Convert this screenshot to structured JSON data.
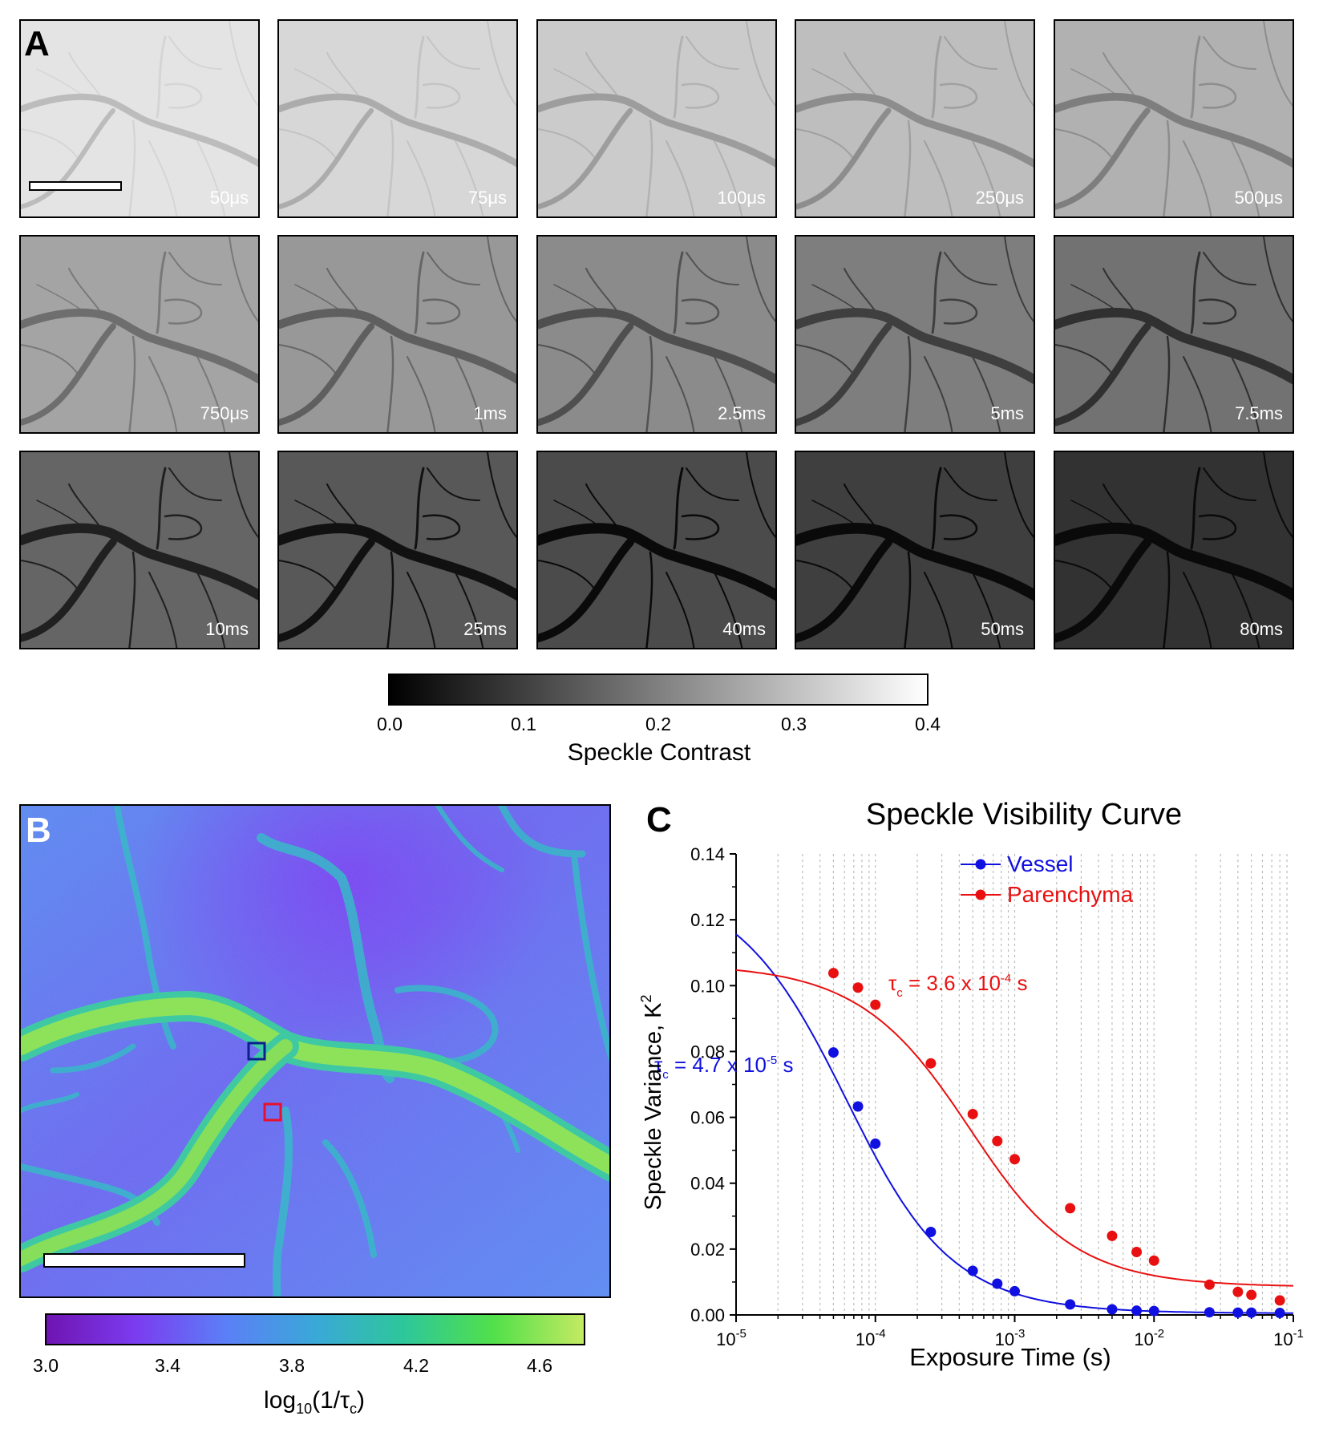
{
  "panelA": {
    "letter": "A",
    "exposures": [
      "50μs",
      "75μs",
      "100μs",
      "250μs",
      "500μs",
      "750μs",
      "1ms",
      "2.5ms",
      "5ms",
      "7.5ms",
      "10ms",
      "25ms",
      "40ms",
      "50ms",
      "80ms"
    ],
    "colorbar": {
      "ticks": [
        "0.0",
        "0.1",
        "0.2",
        "0.3",
        "0.4"
      ],
      "title": "Speckle Contrast",
      "gradient": [
        "#000000",
        "#ffffff"
      ]
    }
  },
  "panelB": {
    "letter": "B",
    "roi_colors": {
      "parenchyma": "#e8102a",
      "vessel": "#0b1f8f"
    },
    "colorbar": {
      "ticks": [
        "3.0",
        "3.4",
        "3.8",
        "4.2",
        "4.6"
      ],
      "title_base": "log",
      "title_sub": "10",
      "title_mid": "(1/τ",
      "title_sub2": "c",
      "title_end": ")",
      "gradient": [
        "#6f14b2",
        "#7b3cf0",
        "#5b7ff7",
        "#3aa8d8",
        "#2ec79a",
        "#52e04a",
        "#c4ea62"
      ]
    }
  },
  "chart_data": {
    "type": "scatter",
    "title": "Speckle Visibility Curve",
    "panel_letter": "C",
    "xlabel": "Exposure Time (s)",
    "ylabel_base": "Speckle Variance, K",
    "ylabel_sup": "2",
    "x_scale": "log",
    "xlim": [
      1e-05,
      0.1
    ],
    "ylim": [
      0,
      0.14
    ],
    "y_ticks": [
      "0.00",
      "0.02",
      "0.04",
      "0.06",
      "0.08",
      "0.10",
      "0.12",
      "0.14"
    ],
    "x_ticks": [
      {
        "value": 1e-05,
        "base": "10",
        "exp": "-5"
      },
      {
        "value": 0.0001,
        "base": "10",
        "exp": "-4"
      },
      {
        "value": 0.001,
        "base": "10",
        "exp": "-3"
      },
      {
        "value": 0.01,
        "base": "10",
        "exp": "-2"
      },
      {
        "value": 0.1,
        "base": "10",
        "exp": "-1"
      }
    ],
    "grid": "vertical-dotted",
    "legend_position": "top-right",
    "series": [
      {
        "name": "Vessel",
        "color": "#1010e0",
        "x": [
          5e-05,
          7.5e-05,
          0.0001,
          0.00025,
          0.0005,
          0.00075,
          0.001,
          0.0025,
          0.005,
          0.0075,
          0.01,
          0.025,
          0.04,
          0.05,
          0.08
        ],
        "y": [
          0.0797,
          0.0633,
          0.052,
          0.0252,
          0.0134,
          0.0095,
          0.0072,
          0.0032,
          0.0017,
          0.0013,
          0.0012,
          0.0008,
          0.0007,
          0.0007,
          0.0006
        ],
        "fit": {
          "tau": 4.7e-05,
          "beta": 0.132,
          "offset": 0.0005
        },
        "annotation": {
          "base": "τ",
          "sub": "c",
          "text": " = 4.7 x 10",
          "sup": "-5",
          "unit": " s"
        }
      },
      {
        "name": "Parenchyma",
        "color": "#e81010",
        "x": [
          5e-05,
          7.5e-05,
          0.0001,
          0.00025,
          0.0005,
          0.00075,
          0.001,
          0.0025,
          0.005,
          0.0075,
          0.01,
          0.025,
          0.04,
          0.05,
          0.08
        ],
        "y": [
          0.1038,
          0.0994,
          0.0942,
          0.0764,
          0.061,
          0.0528,
          0.0473,
          0.0324,
          0.024,
          0.0191,
          0.0165,
          0.0092,
          0.007,
          0.0061,
          0.0044
        ],
        "fit": {
          "tau": 0.00036,
          "beta": 0.098,
          "offset": 0.0085
        },
        "annotation": {
          "base": "τ",
          "sub": "c",
          "text": " = 3.6 x 10",
          "sup": "-4",
          "unit": " s"
        }
      }
    ]
  }
}
